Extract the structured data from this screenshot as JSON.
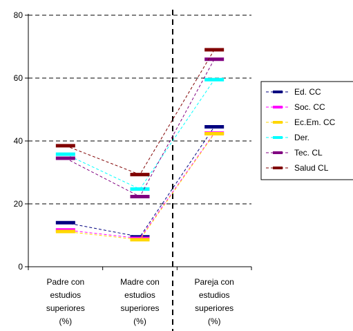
{
  "chart_data": {
    "type": "line",
    "categories": [
      [
        "Padre con",
        "estudios",
        "superiores",
        "(%)"
      ],
      [
        "Madre con",
        "estudios",
        "superiores",
        "(%)"
      ],
      [
        "Pareja con",
        "estudios",
        "superiores",
        "(%)"
      ]
    ],
    "ylim": [
      0,
      80
    ],
    "yticks": [
      "0",
      "20",
      "40",
      "60",
      "80"
    ],
    "grid": true,
    "legend_position": "right",
    "series": [
      {
        "name": "Ed. CC",
        "color": "#000080",
        "values": [
          14,
          9.5,
          44.5
        ]
      },
      {
        "name": "Soc. CC",
        "color": "#FF00FF",
        "values": [
          11.7,
          9,
          42.5
        ]
      },
      {
        "name": "Ec.Em. CC",
        "color": "#FFD700",
        "values": [
          11.2,
          8.6,
          42.3
        ]
      },
      {
        "name": "Der.",
        "color": "#00FFFF",
        "values": [
          35.8,
          24.7,
          59.5
        ]
      },
      {
        "name": "Tec. CL",
        "color": "#800080",
        "values": [
          34.5,
          22.3,
          66
        ]
      },
      {
        "name": "Salud CL",
        "color": "#800000",
        "values": [
          38.5,
          29.3,
          69
        ]
      }
    ]
  }
}
